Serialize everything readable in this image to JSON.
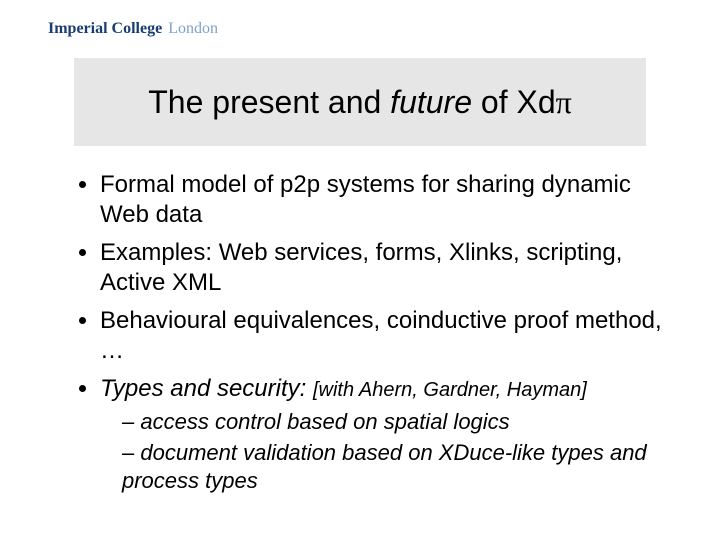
{
  "logo": {
    "strong": "Imperial College",
    "light": "London"
  },
  "title": {
    "prefix": "The present and ",
    "italic": "future",
    "suffix": " of Xd",
    "pi": "π"
  },
  "bullets": [
    {
      "text": "Formal model of p2p systems for sharing dynamic Web data"
    },
    {
      "text": "Examples: Web services, forms, Xlinks, scripting, Active XML"
    },
    {
      "text": "Behavioural equivalences, coinductive proof method, …"
    },
    {
      "italicLead": "Types and security: ",
      "bracket": "[with Ahern, Gardner, Hayman]",
      "sub": [
        "access control based on spatial logics",
        "document validation based on XDuce-like types and process types"
      ]
    }
  ],
  "colors": {
    "logoStrong": "#1a3e6f",
    "logoLight": "#7fa3c9",
    "band": "#e6e6e6",
    "text": "#000000",
    "bg": "#ffffff"
  }
}
